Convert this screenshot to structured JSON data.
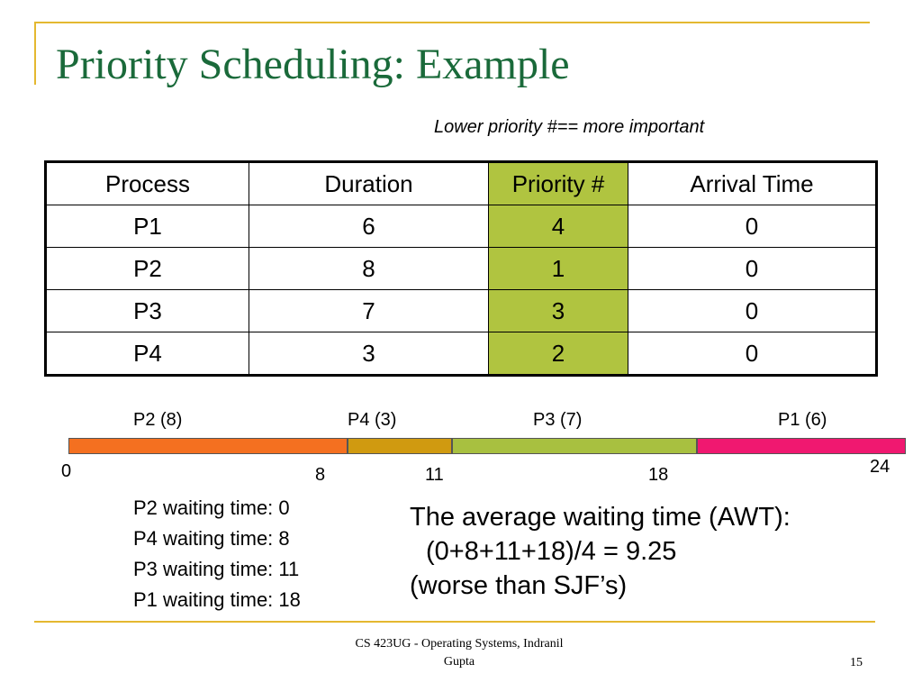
{
  "slide": {
    "title": "Priority Scheduling: Example",
    "subtitle": "Lower priority #== more important"
  },
  "table": {
    "headers": [
      "Process",
      "Duration",
      "Priority #",
      "Arrival Time"
    ],
    "rows": [
      [
        "P1",
        "6",
        "4",
        "0"
      ],
      [
        "P2",
        "8",
        "1",
        "0"
      ],
      [
        "P3",
        "7",
        "3",
        "0"
      ],
      [
        "P4",
        "3",
        "2",
        "0"
      ]
    ],
    "highlight_column_color": "#b0c440"
  },
  "gantt": {
    "total": 24,
    "segments": [
      {
        "label": "P2 (8)",
        "start": 0,
        "end": 8,
        "color": "#f47020"
      },
      {
        "label": "P4 (3)",
        "start": 8,
        "end": 11,
        "color": "#d09a10"
      },
      {
        "label": "P3 (7)",
        "start": 11,
        "end": 18,
        "color": "#a8c040"
      },
      {
        "label": "P1 (6)",
        "start": 18,
        "end": 24,
        "color": "#f01870"
      }
    ],
    "ticks": [
      "0",
      "8",
      "11",
      "18",
      "24"
    ]
  },
  "waiting_times": [
    "P2 waiting time: 0",
    "P4 waiting time: 8",
    "P3 waiting time: 11",
    "P1 waiting time: 18"
  ],
  "awt": {
    "line1": "The average waiting time (AWT):",
    "line2": "(0+8+11+18)/4 = 9.25",
    "line3": "(worse than SJF’s)"
  },
  "footer": {
    "line1": "CS 423UG - Operating Systems, Indranil",
    "line2": "Gupta",
    "page": "15"
  }
}
